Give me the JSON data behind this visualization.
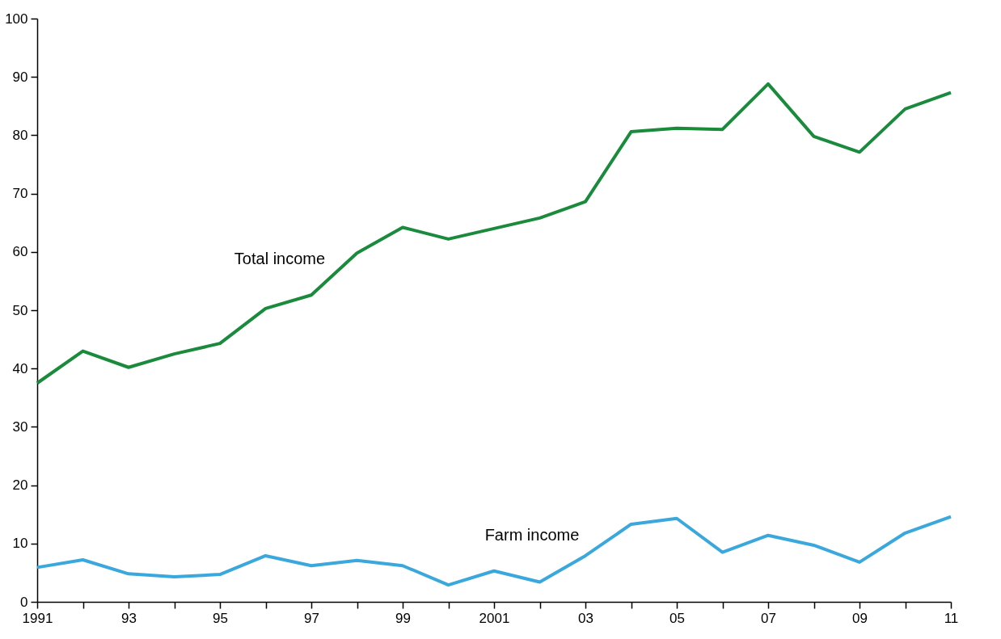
{
  "chart_data": {
    "type": "line",
    "x": [
      1991,
      1992,
      1993,
      1994,
      1995,
      1996,
      1997,
      1998,
      1999,
      2000,
      2001,
      2002,
      2003,
      2004,
      2005,
      2006,
      2007,
      2008,
      2009,
      2010,
      2011
    ],
    "series": [
      {
        "name": "Total income",
        "color": "#1a8a3c",
        "values": [
          37.5,
          43,
          40.2,
          42.5,
          44.3,
          50.3,
          52.6,
          59.8,
          64.2,
          62.2,
          64,
          65.8,
          68.6,
          80.6,
          81.2,
          81,
          88.8,
          79.8,
          77.1,
          84.5,
          87.3
        ]
      },
      {
        "name": "Farm income",
        "color": "#3aa8dc",
        "values": [
          5.9,
          7.2,
          4.8,
          4.3,
          4.7,
          7.9,
          6.2,
          7.1,
          6.2,
          2.9,
          5.3,
          3.4,
          7.9,
          13.3,
          14.3,
          8.5,
          11.4,
          9.7,
          6.8,
          11.8,
          14.6
        ]
      }
    ],
    "xlim": [
      1991,
      2011
    ],
    "xticks": [
      {
        "value": 1991,
        "label": "1991"
      },
      {
        "value": 1992,
        "label": null
      },
      {
        "value": 1993,
        "label": "93"
      },
      {
        "value": 1994,
        "label": null
      },
      {
        "value": 1995,
        "label": "95"
      },
      {
        "value": 1996,
        "label": null
      },
      {
        "value": 1997,
        "label": "97"
      },
      {
        "value": 1998,
        "label": null
      },
      {
        "value": 1999,
        "label": "99"
      },
      {
        "value": 2000,
        "label": null
      },
      {
        "value": 2001,
        "label": "2001"
      },
      {
        "value": 2002,
        "label": null
      },
      {
        "value": 2003,
        "label": "03"
      },
      {
        "value": 2004,
        "label": null
      },
      {
        "value": 2005,
        "label": "05"
      },
      {
        "value": 2006,
        "label": null
      },
      {
        "value": 2007,
        "label": "07"
      },
      {
        "value": 2008,
        "label": null
      },
      {
        "value": 2009,
        "label": "09"
      },
      {
        "value": 2010,
        "label": null
      },
      {
        "value": 2011,
        "label": "11"
      }
    ],
    "ylim": [
      0,
      100
    ],
    "yticks": [
      0,
      10,
      20,
      30,
      40,
      50,
      60,
      70,
      80,
      90,
      100
    ],
    "grid": false,
    "marker": "none",
    "line_style": "solid"
  }
}
